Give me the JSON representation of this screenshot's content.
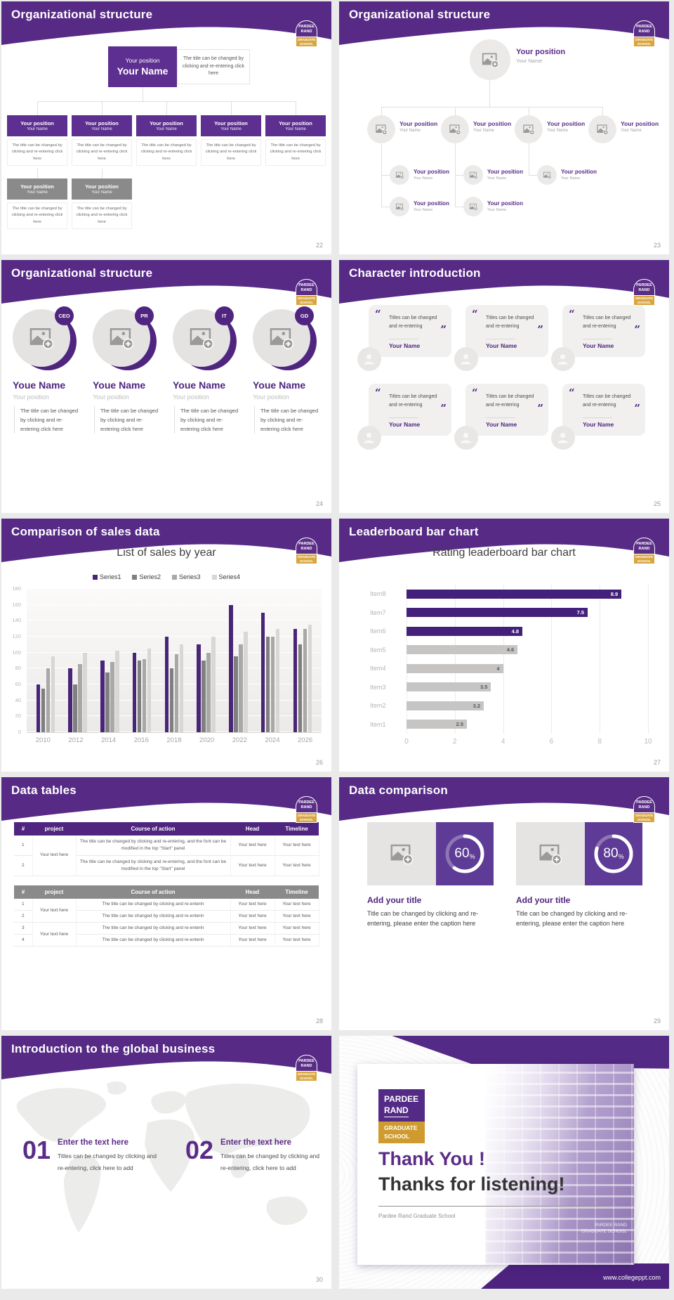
{
  "brand": {
    "l1": "PARDEE",
    "l2": "RAND",
    "l3": "GRADUATE",
    "l4": "SCHOOL",
    "purple": "#562a85",
    "gold": "#d9a53f"
  },
  "shared": {
    "position": "Your position",
    "name": "Your Name",
    "name2": "Youe Name",
    "caption": "The title can be changed by clicking and re-entering click here",
    "quote": "Titles can be changed and re-entering",
    "oq": "“",
    "cq": "”",
    "text_here": "Your text here"
  },
  "slides": {
    "s22": {
      "title": "Organizational structure",
      "number": "22"
    },
    "s23": {
      "title": "Organizational structure",
      "number": "23"
    },
    "s24": {
      "title": "Organizational structure",
      "number": "24",
      "badges": [
        "CEO",
        "PR",
        "IT",
        "GD"
      ]
    },
    "s25": {
      "title": "Character introduction",
      "number": "25"
    },
    "s26": {
      "title": "Comparison of sales data",
      "number": "26"
    },
    "s27": {
      "title": "Leaderboard bar chart",
      "number": "27"
    },
    "s28": {
      "title": "Data tables",
      "number": "28",
      "table1": {
        "headers": [
          "#",
          "project",
          "Course of action",
          "Head",
          "Timeline"
        ],
        "project": "Your text here",
        "rows": [
          {
            "n": "1",
            "action": "The title can be changed by clicking and re-entering, and the font can be modified in the top \"Start\" panel"
          },
          {
            "n": "2",
            "action": "The title can be changed by clicking and re-entering, and the font can be modified in the top \"Start\" panel"
          }
        ]
      },
      "table2": {
        "headers": [
          "#",
          "project",
          "Course of action",
          "Head",
          "Timeline"
        ],
        "project": "Your text here",
        "action": "The title can be changed by clicking and re-enterin",
        "rows": [
          "1",
          "2",
          "3",
          "4"
        ]
      }
    },
    "s29": {
      "title": "Data comparison",
      "number": "29",
      "panels": [
        {
          "value": 60,
          "pct_label": "60",
          "unit": "%",
          "title": "Add your title",
          "caption": "Title can be changed by clicking and re-entering, please enter the caption here"
        },
        {
          "value": 80,
          "pct_label": "80",
          "unit": "%",
          "title": "Add your title",
          "caption": "Title can be changed by clicking and re-entering, please enter the caption here"
        }
      ]
    },
    "s30": {
      "title": "Introduction to the global business",
      "number": "30",
      "items": [
        {
          "num": "01",
          "title": "Enter the text here",
          "caption": "Titles can be changed by clicking and re-entering, click here to add"
        },
        {
          "num": "02",
          "title": "Enter the text here",
          "caption": "Titles can be changed by clicking and re-entering, click here to add"
        }
      ]
    },
    "s31": {
      "title1": "Thank You !",
      "title2": "Thanks for listening!",
      "subtitle": "Pardee Rand Graduate School",
      "watermark1": "PARDEE RAND",
      "watermark2": "GRADUATE SCHOOL",
      "url": "www.collegeppt.com"
    }
  },
  "chart_data": [
    {
      "type": "bar",
      "title": "List of sales by year",
      "legend_position": "top",
      "grid": true,
      "categories": [
        "2010",
        "2012",
        "2014",
        "2016",
        "2018",
        "2020",
        "2022",
        "2024",
        "2026"
      ],
      "series": [
        {
          "name": "Series1",
          "color": "#492577",
          "values": [
            60,
            80,
            90,
            100,
            120,
            110,
            160,
            150,
            130
          ]
        },
        {
          "name": "Series2",
          "color": "#7f7f7f",
          "values": [
            55,
            60,
            75,
            90,
            80,
            90,
            95,
            120,
            110
          ]
        },
        {
          "name": "Series3",
          "color": "#a8a8a8",
          "values": [
            80,
            86,
            88,
            92,
            98,
            100,
            110,
            120,
            130
          ]
        },
        {
          "name": "Series4",
          "color": "#d8d7d6",
          "values": [
            95,
            100,
            102,
            105,
            110,
            120,
            126,
            130,
            135
          ]
        }
      ],
      "ylim": [
        0,
        180
      ],
      "ytick_step": 20
    },
    {
      "type": "bar-horizontal",
      "title": "Rating leaderboard bar chart",
      "grid": true,
      "categories": [
        "Item8",
        "Item7",
        "Item6",
        "Item5",
        "Item4",
        "Item3",
        "Item2",
        "Item1"
      ],
      "values": [
        8.9,
        7.5,
        4.8,
        4.6,
        4,
        3.5,
        3.2,
        2.5
      ],
      "value_labels": [
        "8.9",
        "7.5",
        "4.8",
        "4.6",
        "4",
        "3.5",
        "3.2",
        "2.5"
      ],
      "bar_colors": [
        "#43217a",
        "#43217a",
        "#43217a",
        "#c6c5c4",
        "#c6c5c4",
        "#c6c5c4",
        "#c6c5c4",
        "#c6c5c4"
      ],
      "label_colors": [
        "#ffffff",
        "#ffffff",
        "#ffffff",
        "#595959",
        "#595959",
        "#595959",
        "#595959",
        "#595959"
      ],
      "xlim": [
        0,
        10
      ],
      "xticks": [
        0,
        2,
        4,
        6,
        8,
        10
      ]
    }
  ]
}
